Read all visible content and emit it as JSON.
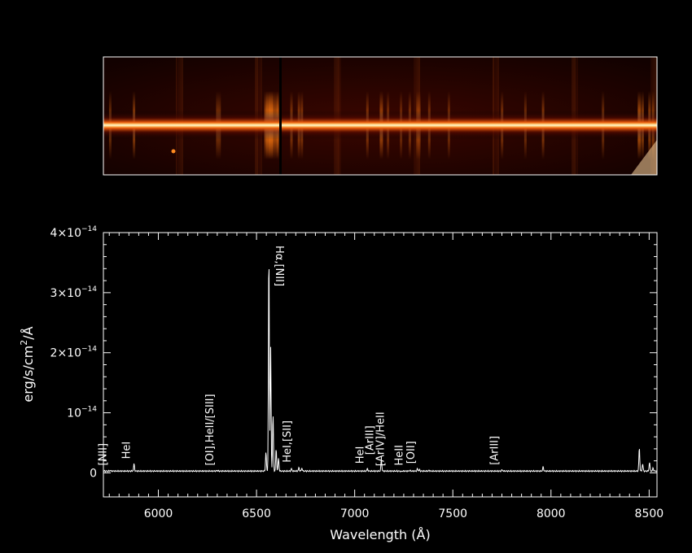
{
  "colors": {
    "background": "#000000",
    "axes": "#ffffff",
    "spectrum_line": "#ffffff",
    "image_core": "#fff6c8",
    "image_mid": "#ff8c14",
    "image_dark": "#3a0600"
  },
  "chart_data": {
    "type": "line",
    "panel_top": {
      "kind": "2D spectrum image",
      "colormap": "heat (black-red-orange-yellow-white)"
    },
    "xlabel": "Wavelength (Å)",
    "ylabel": "erg/s/cm²/Å",
    "ylabel_parts": {
      "base": "erg/s/cm",
      "sup": "2",
      "tail": "/Å"
    },
    "xlim": [
      5720,
      8540
    ],
    "ylim": [
      -4e-15,
      4e-14
    ],
    "x_ticks": [
      {
        "value": 6000,
        "label": "6000"
      },
      {
        "value": 6500,
        "label": "6500"
      },
      {
        "value": 7000,
        "label": "7000"
      },
      {
        "value": 7500,
        "label": "7500"
      },
      {
        "value": 8000,
        "label": "8000"
      },
      {
        "value": 8500,
        "label": "8500"
      }
    ],
    "y_ticks": [
      {
        "value": 0,
        "base": "0",
        "exp": ""
      },
      {
        "value": 1e-14,
        "base": "10",
        "exp": "−14"
      },
      {
        "value": 2e-14,
        "base": "2×10",
        "exp": "−14"
      },
      {
        "value": 3e-14,
        "base": "3×10",
        "exp": "−14"
      },
      {
        "value": 4e-14,
        "base": "4×10",
        "exp": "−14"
      }
    ],
    "continuum": 3e-16,
    "series": [
      {
        "values": {
          "line_peaks": [
            {
              "x": 5755,
              "y": 4e-16
            },
            {
              "x": 5876,
              "y": 1.5e-15
            },
            {
              "x": 6300,
              "y": 4e-16
            },
            {
              "x": 6312,
              "y": 3e-16
            },
            {
              "x": 6548,
              "y": 3.5e-15
            },
            {
              "x": 6563,
              "y": 3.7e-14
            },
            {
              "x": 6572,
              "y": 2.1e-14
            },
            {
              "x": 6584,
              "y": 9.8e-15
            },
            {
              "x": 6600,
              "y": 4e-15
            },
            {
              "x": 6612,
              "y": 2.5e-15
            },
            {
              "x": 6678,
              "y": 7e-16
            },
            {
              "x": 6716,
              "y": 9e-16
            },
            {
              "x": 6731,
              "y": 8e-16
            },
            {
              "x": 7065,
              "y": 7e-16
            },
            {
              "x": 7136,
              "y": 2.2e-15
            },
            {
              "x": 7170,
              "y": 3e-16
            },
            {
              "x": 7236,
              "y": 2e-16
            },
            {
              "x": 7281,
              "y": 4e-16
            },
            {
              "x": 7320,
              "y": 7e-16
            },
            {
              "x": 7330,
              "y": 5e-16
            },
            {
              "x": 7380,
              "y": 4e-16
            },
            {
              "x": 7480,
              "y": 3e-16
            },
            {
              "x": 7751,
              "y": 5e-16
            },
            {
              "x": 7870,
              "y": 3e-16
            },
            {
              "x": 7960,
              "y": 1e-15
            },
            {
              "x": 8265,
              "y": 3e-16
            },
            {
              "x": 8450,
              "y": 4.2e-15
            },
            {
              "x": 8467,
              "y": 1.5e-15
            },
            {
              "x": 8502,
              "y": 1.8e-15
            },
            {
              "x": 8520,
              "y": 8e-16
            }
          ]
        }
      }
    ],
    "annotations": [
      {
        "name": "annot-nii-5755",
        "x": 5755,
        "text": "[NII]"
      },
      {
        "name": "annot-hei-5876",
        "x": 5876,
        "text": "HeI"
      },
      {
        "name": "annot-oi-siii-6300",
        "x": 6300,
        "text": "[OI],HeII/[SIII]"
      },
      {
        "name": "annot-halpha-nii",
        "x": 6570,
        "text": "Hα,[NII]"
      },
      {
        "name": "annot-hei-sii",
        "x": 6695,
        "text": "HeI,[SII]"
      },
      {
        "name": "annot-hei-7065",
        "x": 7065,
        "text": "HeI"
      },
      {
        "name": "annot-ariii-7136",
        "x": 7115,
        "text": "[ArIII]"
      },
      {
        "name": "annot-ariv-heii",
        "x": 7170,
        "text": "[ArIV]/HeII"
      },
      {
        "name": "annot-heii-7280",
        "x": 7265,
        "text": "HeII"
      },
      {
        "name": "annot-oii-7325",
        "x": 7325,
        "text": "[OII]"
      },
      {
        "name": "annot-ariii-7751",
        "x": 7751,
        "text": "[ArIII]"
      }
    ]
  }
}
